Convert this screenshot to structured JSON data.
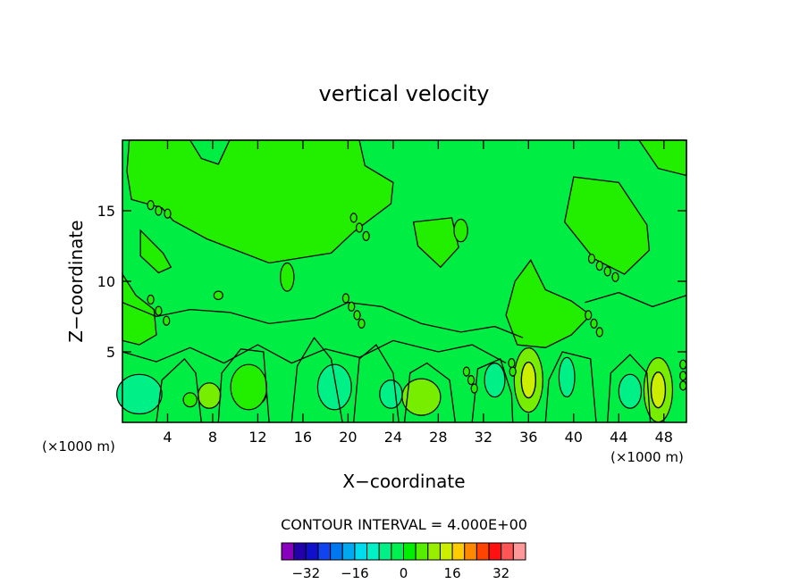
{
  "chart_data": {
    "type": "heatmap",
    "title": "vertical velocity",
    "xlabel": "X−coordinate",
    "ylabel": "Z−coordinate",
    "x_unit": "(×1000 m)",
    "z_unit": "(×1000 m)",
    "xlim": [
      0,
      50
    ],
    "ylim": [
      0,
      20
    ],
    "x_ticks": [
      4,
      8,
      12,
      16,
      20,
      24,
      28,
      32,
      36,
      40,
      44,
      48
    ],
    "y_ticks": [
      5,
      10,
      15
    ],
    "contour_interval_label": "CONTOUR INTERVAL = 4.000E+00",
    "contour_interval": 4.0,
    "colorbar": {
      "levels": [
        -36,
        -32,
        -28,
        -24,
        -20,
        -16,
        -12,
        -8,
        -4,
        0,
        4,
        8,
        12,
        16,
        20,
        24,
        28,
        32,
        36
      ],
      "tick_values": [
        -32,
        -16,
        0,
        16,
        32
      ],
      "tick_labels": [
        "−32",
        "−16",
        "0",
        "16",
        "32"
      ],
      "colors": [
        "#8800bb",
        "#2200aa",
        "#1010cc",
        "#1144ee",
        "#0077ee",
        "#00a8f0",
        "#00dcee",
        "#00f0c8",
        "#00f088",
        "#00f050",
        "#00ee00",
        "#55ee00",
        "#99ee00",
        "#ccee00",
        "#ffcc00",
        "#ff8800",
        "#ff4400",
        "#ff1111",
        "#ff5555",
        "#ff9999"
      ]
    },
    "background_color": "#00ee44",
    "colors": {
      "weak_upward": "#22ee00",
      "weak_downward": "#00f088",
      "moderate_upward": "#77ee00",
      "strong_upward": "#ccee00",
      "moderate_downward": "#00eec8"
    },
    "features": [
      {
        "x": 36.0,
        "z": 3.0,
        "peak": 16,
        "sign": "updraft"
      },
      {
        "x": 47.5,
        "z": 2.3,
        "peak": 16,
        "sign": "updraft"
      },
      {
        "x": 12.0,
        "z": 2.2,
        "peak": 8,
        "sign": "updraft"
      },
      {
        "x": 26.5,
        "z": 1.8,
        "peak": 8,
        "sign": "updraft"
      },
      {
        "x": 1.5,
        "z": 2.0,
        "peak": -4,
        "sign": "downdraft"
      },
      {
        "x": 18.8,
        "z": 2.5,
        "peak": -4,
        "sign": "downdraft"
      },
      {
        "x": 33.0,
        "z": 3.0,
        "peak": -4,
        "sign": "downdraft"
      },
      {
        "x": 45.0,
        "z": 2.2,
        "peak": -4,
        "sign": "downdraft"
      }
    ]
  }
}
